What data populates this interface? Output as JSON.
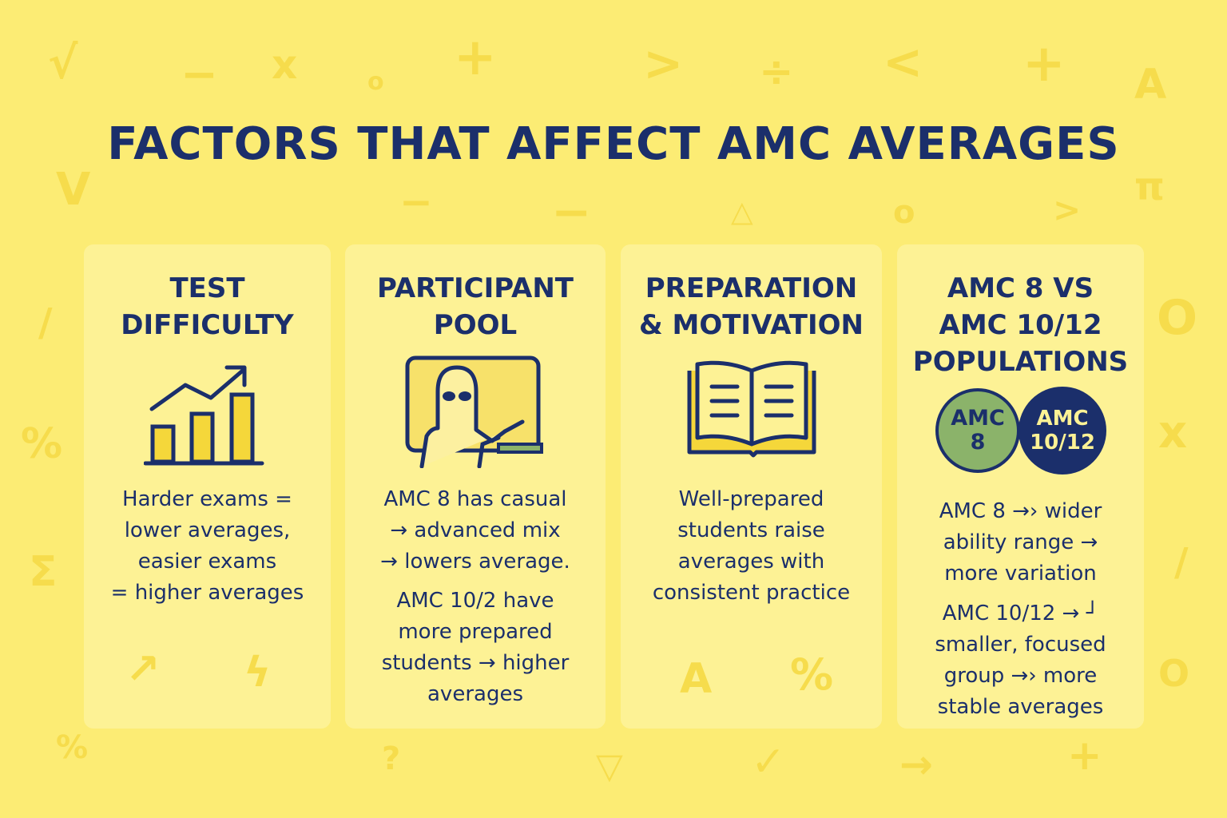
{
  "title": "FACTORS THAT AFFECT AMC AVERAGES",
  "colors": {
    "background": "#fcec74",
    "card": "#fdf295",
    "navy": "#1b2f6b",
    "accent_yellow": "#f5d73a",
    "accent_green": "#8bb36a",
    "decor": "#f6dc4c"
  },
  "cards": [
    {
      "title": "TEST\nDIFFICULTY",
      "icon": "bar-chart-trend-icon",
      "text": "Harder exams =\nlower averages,\neasier exams\n= higher averages"
    },
    {
      "title": "PARTICIPANT\nPOOL",
      "icon": "teacher-at-board-icon",
      "text_1": "AMC 8 has casual\n→ advanced mix\n→ lowers average.",
      "text_2": "AMC 10/2 have\nmore prepared\nstudents → higher\naverages"
    },
    {
      "title": "PREPARATION\n& MOTIVATION",
      "icon": "open-book-icon",
      "text": "Well-prepared\nstudents raise\naverages with\nconsistent practice"
    },
    {
      "title": "AMC 8 VS\nAMC 10/12\nPOPULATIONS",
      "badge_1": "AMC\n8",
      "badge_2": "AMC\n10/12",
      "text_1": "AMC 8 →› wider\nability range →\nmore variation",
      "text_2": "AMC 10/12 → ┘\nsmaller, focused\ngroup →› more\nstable averages"
    }
  ]
}
